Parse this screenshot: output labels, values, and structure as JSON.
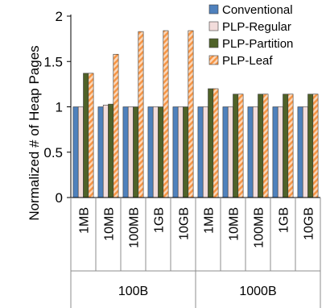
{
  "chart_data": {
    "type": "bar",
    "title": "",
    "xlabel": "",
    "ylabel": "Normalized # of Heap Pages",
    "ylim": [
      0,
      2
    ],
    "yticks": [
      "0",
      "0.5",
      "1",
      "1.5",
      "2"
    ],
    "grid": false,
    "legend": "top-right",
    "groups": [
      {
        "label": "100B",
        "categories": [
          "1MB",
          "10MB",
          "100MB",
          "1GB",
          "10GB"
        ]
      },
      {
        "label": "1000B",
        "categories": [
          "1MB",
          "10MB",
          "100MB",
          "1GB",
          "10GB"
        ]
      }
    ],
    "series": [
      {
        "name": "Conventional",
        "color": "#4f81bd",
        "pattern": "solid",
        "values": [
          1.0,
          1.0,
          1.0,
          1.0,
          1.0,
          1.0,
          1.0,
          1.0,
          1.0,
          1.0
        ]
      },
      {
        "name": "PLP-Regular",
        "color": "#f2dcdb",
        "pattern": "solid",
        "values": [
          1.0,
          1.02,
          1.0,
          1.0,
          1.0,
          1.0,
          1.0,
          1.0,
          1.0,
          1.0
        ]
      },
      {
        "name": "PLP-Partition",
        "color": "#4f6228",
        "pattern": "solid",
        "values": [
          1.37,
          1.03,
          1.0,
          1.0,
          1.0,
          1.2,
          1.14,
          1.14,
          1.14,
          1.14
        ]
      },
      {
        "name": "PLP-Leaf",
        "color": "#f79646",
        "pattern": "diagonal-stripes",
        "values": [
          1.37,
          1.58,
          1.83,
          1.84,
          1.84,
          1.2,
          1.14,
          1.14,
          1.14,
          1.14
        ]
      }
    ]
  }
}
